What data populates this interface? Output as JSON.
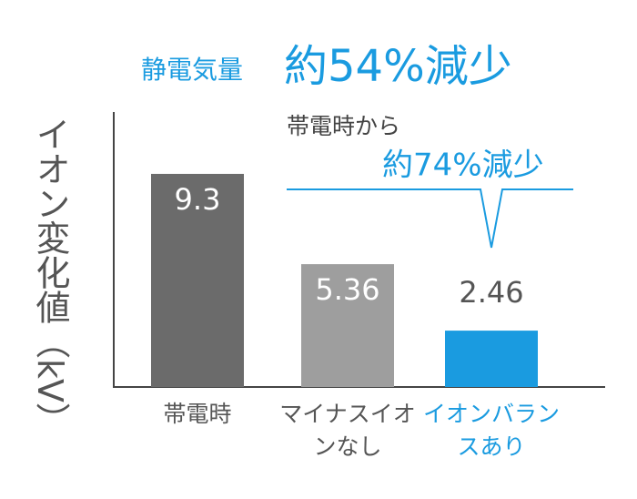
{
  "chart_data": {
    "type": "bar",
    "title": "静電気量",
    "subtitle": "約54%減少",
    "ylabel": "イオン変化値（kV）",
    "annotations": [
      "帯電時から",
      "約74%減少"
    ],
    "categories": [
      "帯電時",
      "マイナスイオンなし",
      "イオンバランスあり"
    ],
    "values": [
      9.3,
      5.36,
      2.46
    ],
    "colors": [
      "#6b6b6b",
      "#9e9e9e",
      "#1a9be0"
    ],
    "ylim": [
      0,
      12
    ]
  }
}
